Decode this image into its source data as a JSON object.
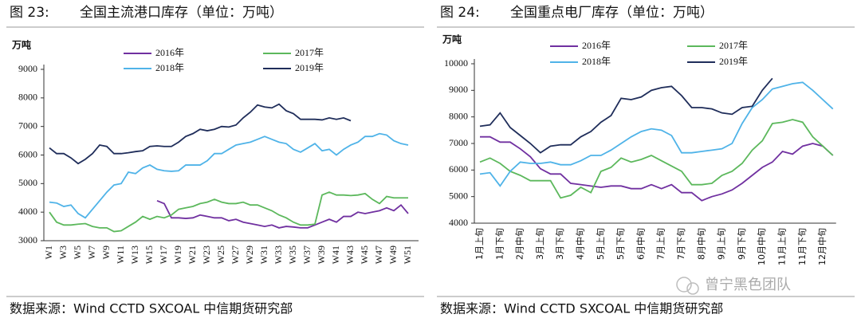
{
  "chart_data": [
    {
      "type": "line",
      "figure_label": "图 23:",
      "title": "全国主流港口库存（单位：万吨）",
      "y_label": "万吨",
      "source": "数据来源：Wind CCTD SXCOAL  中信期货研究部",
      "categories": [
        "W1",
        null,
        "W3",
        null,
        "W5",
        null,
        "W7",
        null,
        "W9",
        null,
        "W11",
        null,
        "W13",
        null,
        "W15",
        null,
        "W17",
        null,
        "W19",
        null,
        "W21",
        null,
        "W23",
        null,
        "W25",
        null,
        "W27",
        null,
        "W29",
        null,
        "W31",
        null,
        "W33",
        null,
        "W35",
        null,
        "W37",
        null,
        "W39",
        null,
        "W41",
        null,
        "W43",
        null,
        "W45",
        null,
        "W47",
        null,
        "W49",
        null,
        "W51",
        null
      ],
      "ylim": [
        3000,
        9000
      ],
      "yticks": [
        3000,
        4000,
        5000,
        6000,
        7000,
        8000,
        9000
      ],
      "series": [
        {
          "name": "2016年",
          "color": "#7030a0",
          "values": [
            null,
            null,
            null,
            null,
            null,
            null,
            null,
            null,
            null,
            null,
            null,
            null,
            null,
            null,
            null,
            4400,
            4300,
            3800,
            3800,
            3780,
            3800,
            3900,
            3850,
            3800,
            3800,
            3700,
            3750,
            3650,
            3600,
            3550,
            3500,
            3550,
            3450,
            3500,
            3480,
            3450,
            3450,
            3550,
            3650,
            3750,
            3650,
            3850,
            3850,
            4000,
            3950,
            4000,
            4050,
            4150,
            4050,
            4250,
            3950,
            null
          ]
        },
        {
          "name": "2017年",
          "color": "#5cb85c",
          "values": [
            4000,
            3650,
            3550,
            3550,
            3580,
            3600,
            3500,
            3450,
            3450,
            3320,
            3350,
            3500,
            3650,
            3850,
            3750,
            3850,
            3800,
            3900,
            4100,
            4150,
            4200,
            4300,
            4350,
            4450,
            4350,
            4300,
            4300,
            4350,
            4250,
            4250,
            4150,
            4050,
            3900,
            3800,
            3650,
            3550,
            3550,
            3580,
            4600,
            4700,
            4600,
            4600,
            4580,
            4600,
            4650,
            4450,
            4300,
            4550,
            4500,
            4500,
            4500,
            null
          ]
        },
        {
          "name": "2018年",
          "color": "#4fb3e8",
          "values": [
            4350,
            4320,
            4200,
            4250,
            3950,
            3800,
            4100,
            4400,
            4700,
            4950,
            5000,
            5400,
            5350,
            5550,
            5650,
            5500,
            5450,
            5430,
            5450,
            5650,
            5650,
            5650,
            5800,
            6050,
            6050,
            6200,
            6350,
            6400,
            6450,
            6550,
            6650,
            6550,
            6450,
            6400,
            6200,
            6100,
            6250,
            6400,
            6150,
            6200,
            6000,
            6200,
            6350,
            6450,
            6650,
            6650,
            6750,
            6700,
            6500,
            6400,
            6350,
            null
          ]
        },
        {
          "name": "2019年",
          "color": "#1f2d5a",
          "values": [
            6250,
            6050,
            6050,
            5900,
            5700,
            5850,
            6050,
            6350,
            6300,
            6050,
            6050,
            6080,
            6120,
            6150,
            6300,
            6320,
            6300,
            6300,
            6450,
            6650,
            6750,
            6900,
            6850,
            6900,
            7000,
            6980,
            7050,
            7300,
            7500,
            7750,
            7680,
            7650,
            7780,
            7550,
            7450,
            7250,
            7250,
            7250,
            7230,
            7300,
            7250,
            7300,
            7200,
            null,
            null,
            null,
            null,
            null,
            null,
            null,
            null,
            null
          ]
        }
      ]
    },
    {
      "type": "line",
      "figure_label": "图 24:",
      "title": "全国重点电厂库存（单位：万吨）",
      "y_label": "万吨",
      "source": "数据来源：Wind CCTD SXCOAL  中信期货研究部",
      "categories": [
        "1月上旬",
        null,
        "1月下旬",
        null,
        "2月中旬",
        null,
        "3月上旬",
        null,
        "3月下旬",
        null,
        "4月中旬",
        null,
        "5月上旬",
        null,
        "5月下旬",
        null,
        "6月中旬",
        null,
        "7月上旬",
        null,
        "7月下旬",
        null,
        "8月中旬",
        null,
        "9月上旬",
        null,
        "9月下旬",
        null,
        "10月中旬",
        null,
        "11月上旬",
        null,
        "11月下旬",
        null,
        "12月中旬",
        null
      ],
      "ylim": [
        4000,
        10000
      ],
      "yticks": [
        4000,
        5000,
        6000,
        7000,
        8000,
        9000,
        10000
      ],
      "series": [
        {
          "name": "2016年",
          "color": "#7030a0",
          "values": [
            7250,
            7250,
            7050,
            7050,
            6800,
            6500,
            6050,
            5850,
            5850,
            5500,
            5450,
            5400,
            5350,
            5400,
            5400,
            5300,
            5300,
            5450,
            5300,
            5450,
            5150,
            5150,
            4850,
            5000,
            5100,
            5250,
            5500,
            5800,
            6100,
            6300,
            6700,
            6600,
            6900,
            7000,
            6900,
            6550
          ]
        },
        {
          "name": "2017年",
          "color": "#5cb85c",
          "values": [
            6300,
            6450,
            6250,
            5950,
            5800,
            5600,
            5600,
            5600,
            4950,
            5050,
            5350,
            5150,
            5950,
            6100,
            6450,
            6300,
            6400,
            6550,
            6350,
            6150,
            5950,
            5450,
            5450,
            5500,
            5800,
            5950,
            6250,
            6750,
            7100,
            7750,
            7800,
            7900,
            7800,
            7250,
            6900,
            6550
          ]
        },
        {
          "name": "2018年",
          "color": "#4fb3e8",
          "values": [
            5850,
            5900,
            5400,
            5950,
            6300,
            6250,
            6250,
            6300,
            6200,
            6200,
            6350,
            6550,
            6550,
            6750,
            7000,
            7250,
            7450,
            7550,
            7500,
            7300,
            6650,
            6650,
            6700,
            6750,
            6800,
            7000,
            7750,
            8350,
            8650,
            9050,
            9150,
            9250,
            9300,
            9000,
            8650,
            8300
          ]
        },
        {
          "name": "2019年",
          "color": "#1f2d5a",
          "values": [
            7650,
            7700,
            8150,
            7600,
            7300,
            7000,
            6650,
            6900,
            6950,
            6950,
            7250,
            7450,
            7800,
            8050,
            8700,
            8650,
            8750,
            9000,
            9100,
            9150,
            8800,
            8350,
            8350,
            8300,
            8150,
            8100,
            8350,
            8400,
            9000,
            9450,
            null,
            null,
            null,
            null,
            null,
            null
          ]
        }
      ]
    }
  ],
  "watermark": "曾宁黑色团队"
}
